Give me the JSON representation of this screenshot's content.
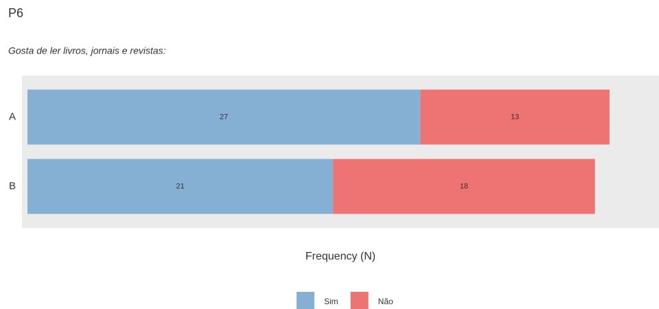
{
  "chart_data": {
    "type": "stacked-barh",
    "title": "P6",
    "subtitle": "Gosta de ler livros, jornais e revistas:",
    "categories": [
      "A",
      "B"
    ],
    "series": [
      {
        "name": "Sim",
        "color": "#86afd4",
        "values": [
          27,
          21
        ]
      },
      {
        "name": "Não",
        "color": "#ee7373",
        "values": [
          13,
          18
        ]
      }
    ],
    "xlabel": "Frequency (N)",
    "xlim": [
      0,
      43.4
    ],
    "legend": "bottom"
  }
}
